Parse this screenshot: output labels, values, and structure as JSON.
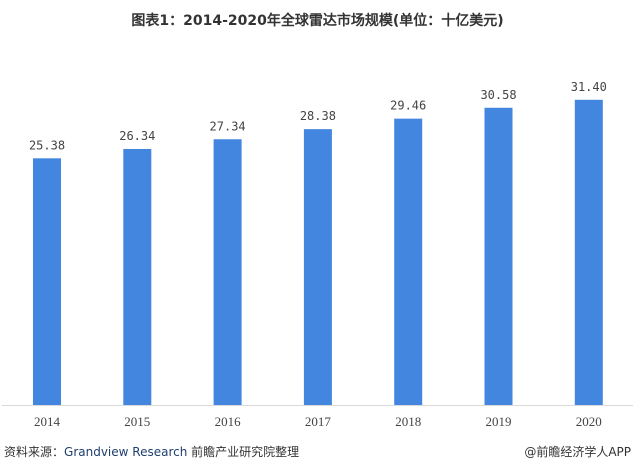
{
  "chart_data": {
    "type": "bar",
    "title": "图表1：2014-2020年全球雷达市场规模(单位：十亿美元)",
    "categories": [
      "2014",
      "2015",
      "2016",
      "2017",
      "2018",
      "2019",
      "2020"
    ],
    "values": [
      25.38,
      26.34,
      27.34,
      28.38,
      29.46,
      30.58,
      31.4
    ],
    "data_labels": [
      "25.38",
      "26.34",
      "27.34",
      "28.38",
      "29.46",
      "30.58",
      "31.40"
    ],
    "xlabel": "",
    "ylabel": "",
    "ylim": [
      0,
      35
    ],
    "grid": false,
    "bar_color": "#4286e0"
  },
  "footer": {
    "source_prefix": "资料来源：",
    "source_en": "Grandview Research",
    "source_suffix": " 前瞻产业研究院整理",
    "watermark": "@前瞻经济学人APP"
  }
}
